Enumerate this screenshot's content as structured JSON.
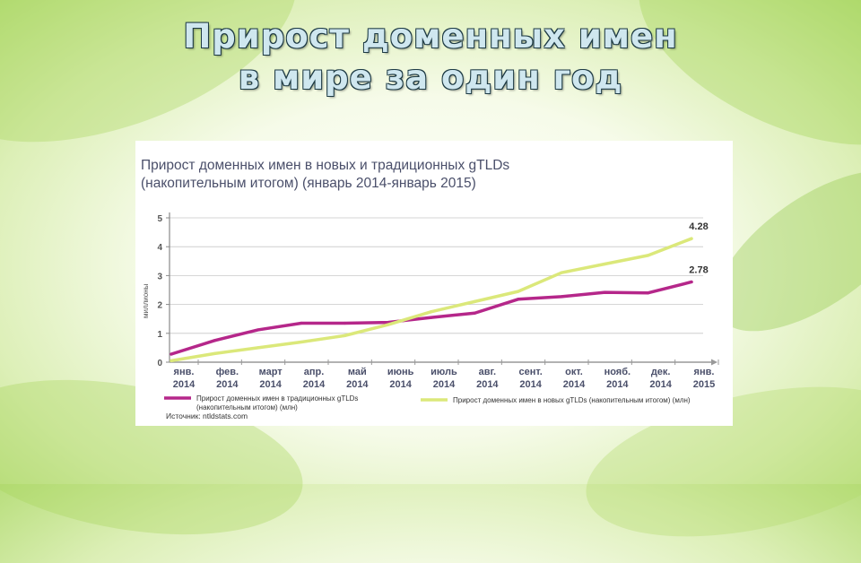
{
  "slide": {
    "title_line1": "Прирост доменных имен",
    "title_line2": "в мире за один год"
  },
  "chart_data": {
    "type": "line",
    "title_line1": "Прирост доменных имен в новых и традиционных gTLDs",
    "title_line2": "(накопительным итогом) (январь 2014-январь 2015)",
    "ylabel": "миллионы",
    "ylim": [
      0,
      5
    ],
    "yticks": [
      "0",
      "1",
      "2",
      "3",
      "4",
      "5"
    ],
    "categories": [
      [
        "янв.",
        "2014"
      ],
      [
        "фев.",
        "2014"
      ],
      [
        "март",
        "2014"
      ],
      [
        "апр.",
        "2014"
      ],
      [
        "май",
        "2014"
      ],
      [
        "июнь",
        "2014"
      ],
      [
        "июль",
        "2014"
      ],
      [
        "авг.",
        "2014"
      ],
      [
        "сент.",
        "2014"
      ],
      [
        "окт.",
        "2014"
      ],
      [
        "нояб.",
        "2014"
      ],
      [
        "дек.",
        "2014"
      ],
      [
        "янв.",
        "2015"
      ]
    ],
    "series": [
      {
        "name_line1": "Прирост доменных имен в традиционных gTLDs",
        "name_line2": "(накопительным итогом) (млн)",
        "color": "#b5278a",
        "values": [
          0.28,
          0.75,
          1.12,
          1.35,
          1.35,
          1.38,
          1.55,
          1.7,
          2.18,
          2.27,
          2.42,
          2.4,
          2.78
        ],
        "end_label": "2.78"
      },
      {
        "name_line1": "Прирост доменных имен в новых gTLDs (накопительным итогом) (млн)",
        "name_line2": "",
        "color": "#dbe87a",
        "values": [
          0.05,
          0.3,
          0.5,
          0.7,
          0.92,
          1.3,
          1.75,
          2.1,
          2.45,
          3.1,
          3.4,
          3.7,
          4.28
        ],
        "end_label": "4.28"
      }
    ],
    "source": "Источник: ntldstats.com",
    "grid": true
  }
}
